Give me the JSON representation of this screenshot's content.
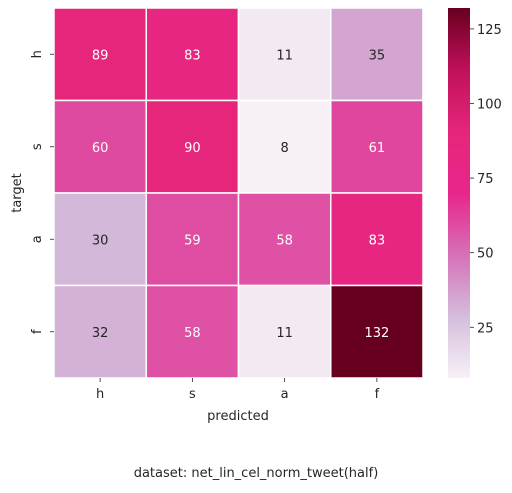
{
  "chart_data": {
    "type": "heatmap",
    "row_categories": [
      "h",
      "s",
      "a",
      "f"
    ],
    "col_categories": [
      "h",
      "s",
      "a",
      "f"
    ],
    "values": [
      [
        89,
        83,
        11,
        35
      ],
      [
        60,
        90,
        8,
        61
      ],
      [
        30,
        59,
        58,
        83
      ],
      [
        32,
        58,
        11,
        132
      ]
    ],
    "xlabel": "predicted",
    "ylabel": "target",
    "colorbar": {
      "min": 8,
      "max": 132,
      "ticks": [
        25,
        50,
        75,
        100,
        125
      ]
    },
    "colormap": [
      "#f7f0f7",
      "#d4bddc",
      "#d670b7",
      "#e8258b",
      "#e5267a",
      "#c0105a",
      "#67001f"
    ],
    "annotation_colors": {
      "dark": "#262626",
      "light": "#ffffff"
    }
  },
  "caption": "dataset: net_lin_cel_norm_tweet(half)"
}
